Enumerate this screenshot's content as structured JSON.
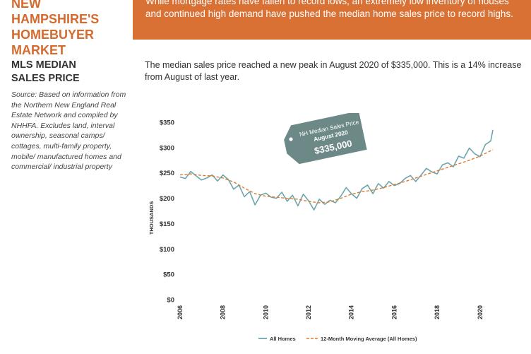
{
  "header": {
    "title": "New Hampshire's\nHomebuyer\nMarket",
    "banner_text": "While mortgage rates have fallen to record lows, an extremely low inventory of houses and continued high demand have pushed the median home sales price to record highs."
  },
  "sidebar": {
    "section_title": "MLS Median\nSales Price",
    "source": "Source: Based on information from the Northern New England Real Estate Network and compiled by NHHFA. Excludes land, interval ownership, seasonal camps/ cottages, multi-family property, mobile/ manufactured homes and commercial/ industrial property"
  },
  "main": {
    "lead": "The median sales price reached a new peak in August 2020 of $335,000.  This is a 14% increase from August of last year."
  },
  "colors": {
    "accent": "#d97135",
    "series_all": "#6da5ad",
    "series_avg": "#e07b2e",
    "callout": "#6d8987"
  },
  "chart_data": {
    "type": "line",
    "ylabel": "THOUSANDS",
    "xlabel": "",
    "ylim": [
      0,
      350
    ],
    "xlim": [
      2006,
      2020.6
    ],
    "ytick_values": [
      0,
      50,
      100,
      150,
      200,
      250,
      300,
      350
    ],
    "ytick_labels": [
      "$0",
      "$50",
      "$100",
      "$150",
      "$200",
      "$250",
      "$300",
      "$350"
    ],
    "xtick_values": [
      2006,
      2008,
      2010,
      2012,
      2014,
      2016,
      2018,
      2020
    ],
    "xtick_labels": [
      "2006",
      "2008",
      "2010",
      "2012",
      "2014",
      "2016",
      "2018",
      "2020"
    ],
    "grid": false,
    "legend_position": "bottom",
    "callout": {
      "line1": "NH Median Sales Price",
      "line2": "August 2020",
      "value": "$335,000"
    },
    "series": [
      {
        "name": "All Homes",
        "style": "solid",
        "points": [
          [
            2006.0,
            242
          ],
          [
            2006.25,
            239
          ],
          [
            2006.5,
            253
          ],
          [
            2006.75,
            244
          ],
          [
            2007.0,
            236
          ],
          [
            2007.25,
            240
          ],
          [
            2007.5,
            246
          ],
          [
            2007.75,
            234
          ],
          [
            2008.0,
            246
          ],
          [
            2008.25,
            237
          ],
          [
            2008.5,
            218
          ],
          [
            2008.75,
            226
          ],
          [
            2009.0,
            203
          ],
          [
            2009.25,
            213
          ],
          [
            2009.5,
            187
          ],
          [
            2009.75,
            206
          ],
          [
            2010.0,
            210
          ],
          [
            2010.25,
            202
          ],
          [
            2010.5,
            200
          ],
          [
            2010.75,
            212
          ],
          [
            2011.0,
            194
          ],
          [
            2011.25,
            206
          ],
          [
            2011.5,
            185
          ],
          [
            2011.75,
            208
          ],
          [
            2012.0,
            195
          ],
          [
            2012.25,
            177
          ],
          [
            2012.5,
            198
          ],
          [
            2012.75,
            188
          ],
          [
            2013.0,
            196
          ],
          [
            2013.25,
            191
          ],
          [
            2013.5,
            204
          ],
          [
            2013.75,
            221
          ],
          [
            2014.0,
            209
          ],
          [
            2014.25,
            200
          ],
          [
            2014.5,
            219
          ],
          [
            2014.75,
            226
          ],
          [
            2015.0,
            209
          ],
          [
            2015.25,
            229
          ],
          [
            2015.5,
            220
          ],
          [
            2015.75,
            233
          ],
          [
            2016.0,
            225
          ],
          [
            2016.25,
            229
          ],
          [
            2016.5,
            239
          ],
          [
            2016.75,
            245
          ],
          [
            2017.0,
            233
          ],
          [
            2017.25,
            246
          ],
          [
            2017.5,
            259
          ],
          [
            2017.75,
            252
          ],
          [
            2018.0,
            248
          ],
          [
            2018.25,
            266
          ],
          [
            2018.5,
            270
          ],
          [
            2018.75,
            262
          ],
          [
            2019.0,
            283
          ],
          [
            2019.25,
            279
          ],
          [
            2019.5,
            299
          ],
          [
            2019.75,
            288
          ],
          [
            2020.0,
            282
          ],
          [
            2020.25,
            306
          ],
          [
            2020.5,
            313
          ],
          [
            2020.6,
            335
          ]
        ]
      },
      {
        "name": "12-Month Moving Average (All Homes)",
        "style": "dashed",
        "points": [
          [
            2006.0,
            246
          ],
          [
            2006.5,
            248
          ],
          [
            2007.0,
            245
          ],
          [
            2007.5,
            244
          ],
          [
            2008.0,
            240
          ],
          [
            2008.5,
            232
          ],
          [
            2009.0,
            220
          ],
          [
            2009.5,
            209
          ],
          [
            2010.0,
            204
          ],
          [
            2010.5,
            202
          ],
          [
            2011.0,
            200
          ],
          [
            2011.5,
            198
          ],
          [
            2012.0,
            194
          ],
          [
            2012.5,
            191
          ],
          [
            2013.0,
            193
          ],
          [
            2013.5,
            200
          ],
          [
            2014.0,
            208
          ],
          [
            2014.5,
            213
          ],
          [
            2015.0,
            216
          ],
          [
            2015.5,
            221
          ],
          [
            2016.0,
            227
          ],
          [
            2016.5,
            233
          ],
          [
            2017.0,
            240
          ],
          [
            2017.5,
            247
          ],
          [
            2018.0,
            254
          ],
          [
            2018.5,
            261
          ],
          [
            2019.0,
            268
          ],
          [
            2019.5,
            275
          ],
          [
            2020.0,
            283
          ],
          [
            2020.6,
            296
          ]
        ]
      }
    ]
  }
}
